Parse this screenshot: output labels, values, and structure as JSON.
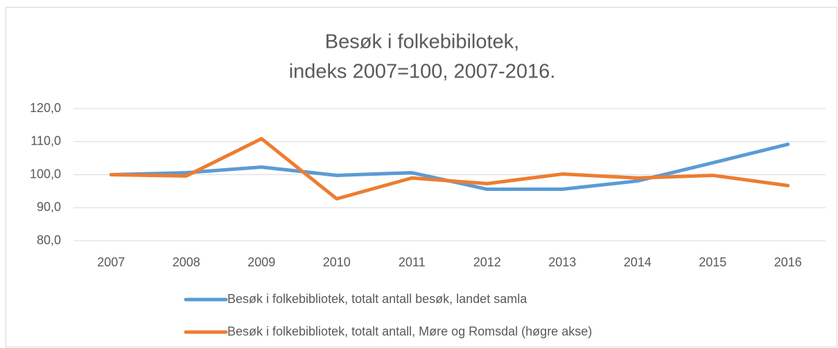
{
  "chart_data": {
    "type": "line",
    "title": [
      "Besøk i folkebibilotek,",
      "indeks 2007=100, 2007-2016."
    ],
    "categories": [
      "2007",
      "2008",
      "2009",
      "2010",
      "2011",
      "2012",
      "2013",
      "2014",
      "2015",
      "2016"
    ],
    "series": [
      {
        "name": "Besøk i folkebibliotek, totalt antall besøk, landet samla",
        "color": "#5b9bd5",
        "values": [
          100.0,
          100.6,
          102.3,
          99.8,
          100.6,
          95.6,
          95.6,
          98.1,
          103.6,
          109.2
        ]
      },
      {
        "name": "Besøk i folkebibliotek, totalt antall, Møre og Romsdal (høgre akse)",
        "color": "#ed7d31",
        "values": [
          100.0,
          99.6,
          110.9,
          92.7,
          99.0,
          97.3,
          100.2,
          99.0,
          99.8,
          96.7
        ]
      }
    ],
    "ylim": [
      80,
      120
    ],
    "yticks": [
      {
        "value": 80,
        "label": "80,0"
      },
      {
        "value": 90,
        "label": "90,0"
      },
      {
        "value": 100,
        "label": "100,0"
      },
      {
        "value": 110,
        "label": "110,0"
      },
      {
        "value": 120,
        "label": "120,0"
      }
    ],
    "grid": true,
    "legend": "bottom"
  }
}
